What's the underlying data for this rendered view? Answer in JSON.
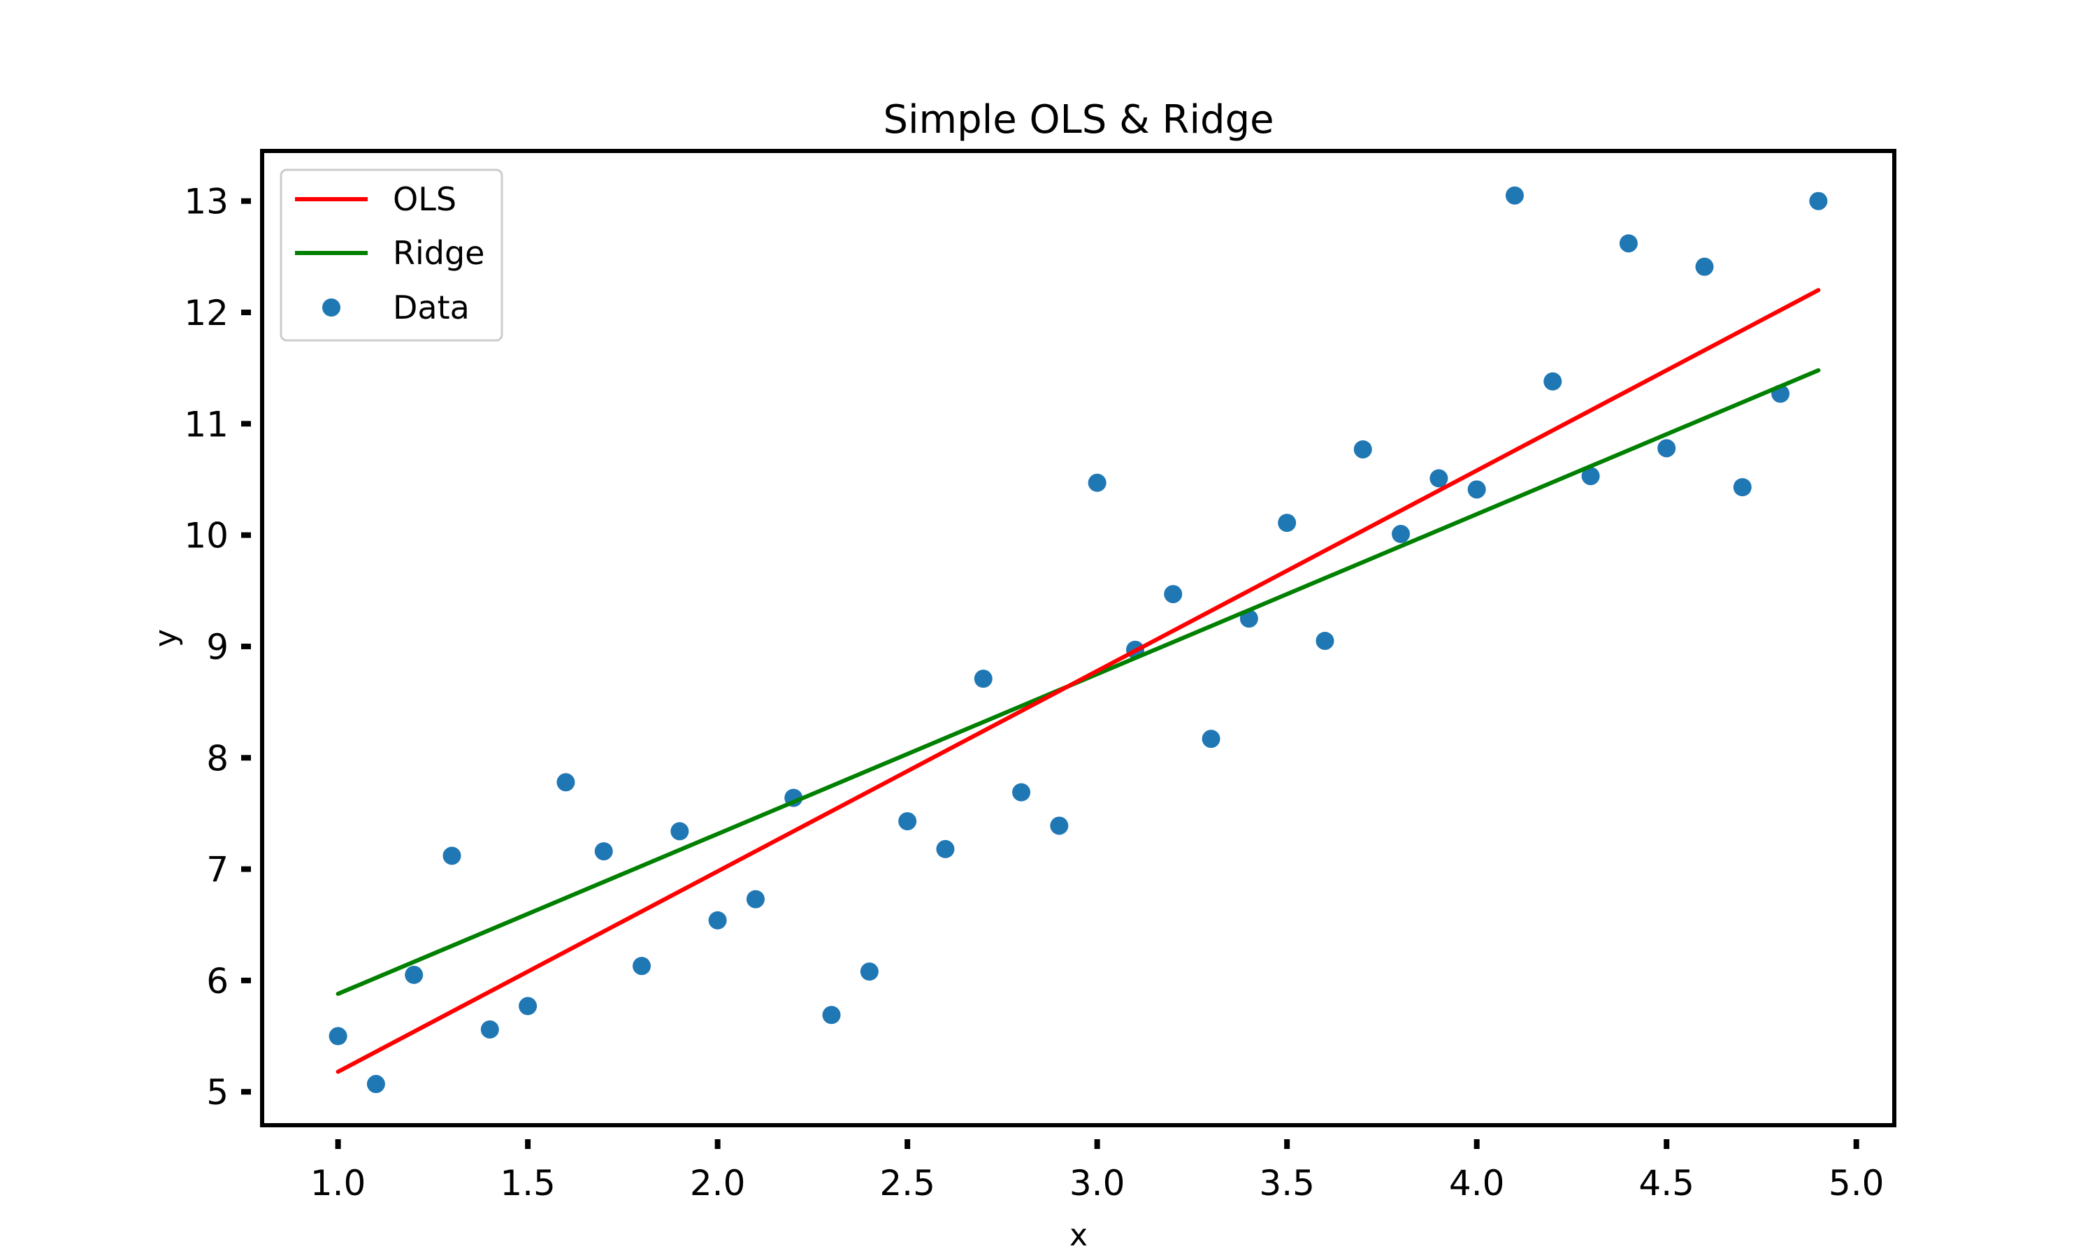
{
  "chart_data": {
    "type": "scatter",
    "title": "Simple OLS & Ridge",
    "xlabel": "x",
    "ylabel": "y",
    "xlim": [
      0.8,
      5.1
    ],
    "ylim": [
      4.7,
      13.45
    ],
    "xticks": [
      1.0,
      1.5,
      2.0,
      2.5,
      3.0,
      3.5,
      4.0,
      4.5,
      5.0
    ],
    "xtick_labels": [
      "1.0",
      "1.5",
      "2.0",
      "2.5",
      "3.0",
      "3.5",
      "4.0",
      "4.5",
      "5.0"
    ],
    "yticks": [
      5,
      6,
      7,
      8,
      9,
      10,
      11,
      12,
      13
    ],
    "ytick_labels": [
      "5",
      "6",
      "7",
      "8",
      "9",
      "10",
      "11",
      "12",
      "13"
    ],
    "grid": false,
    "legend_position": "top-left",
    "series": [
      {
        "name": "OLS",
        "kind": "line",
        "color": "#ff0000",
        "x": [
          1.0,
          4.9
        ],
        "y": [
          5.18,
          12.2
        ]
      },
      {
        "name": "Ridge",
        "kind": "line",
        "color": "#008000",
        "x": [
          1.0,
          4.9
        ],
        "y": [
          5.88,
          11.48
        ]
      },
      {
        "name": "Data",
        "kind": "scatter",
        "color": "#1f77b4",
        "x": [
          1.0,
          1.1,
          1.2,
          1.3,
          1.4,
          1.5,
          1.6,
          1.7,
          1.8,
          1.9,
          2.0,
          2.1,
          2.2,
          2.3,
          2.4,
          2.5,
          2.6,
          2.7,
          2.8,
          2.9,
          3.0,
          3.1,
          3.2,
          3.3,
          3.4,
          3.5,
          3.6,
          3.7,
          3.8,
          3.9,
          4.0,
          4.1,
          4.2,
          4.3,
          4.4,
          4.5,
          4.6,
          4.7,
          4.8,
          4.9
        ],
        "y": [
          5.5,
          5.07,
          6.05,
          7.12,
          5.56,
          5.77,
          7.78,
          7.16,
          6.13,
          7.34,
          6.54,
          6.73,
          7.64,
          5.69,
          6.08,
          7.43,
          7.18,
          8.71,
          7.69,
          7.39,
          10.47,
          8.97,
          9.47,
          8.17,
          9.25,
          10.11,
          9.05,
          10.77,
          10.01,
          10.51,
          10.41,
          13.05,
          11.38,
          10.53,
          12.62,
          10.78,
          12.41,
          10.43,
          11.27,
          13.0
        ]
      }
    ]
  }
}
